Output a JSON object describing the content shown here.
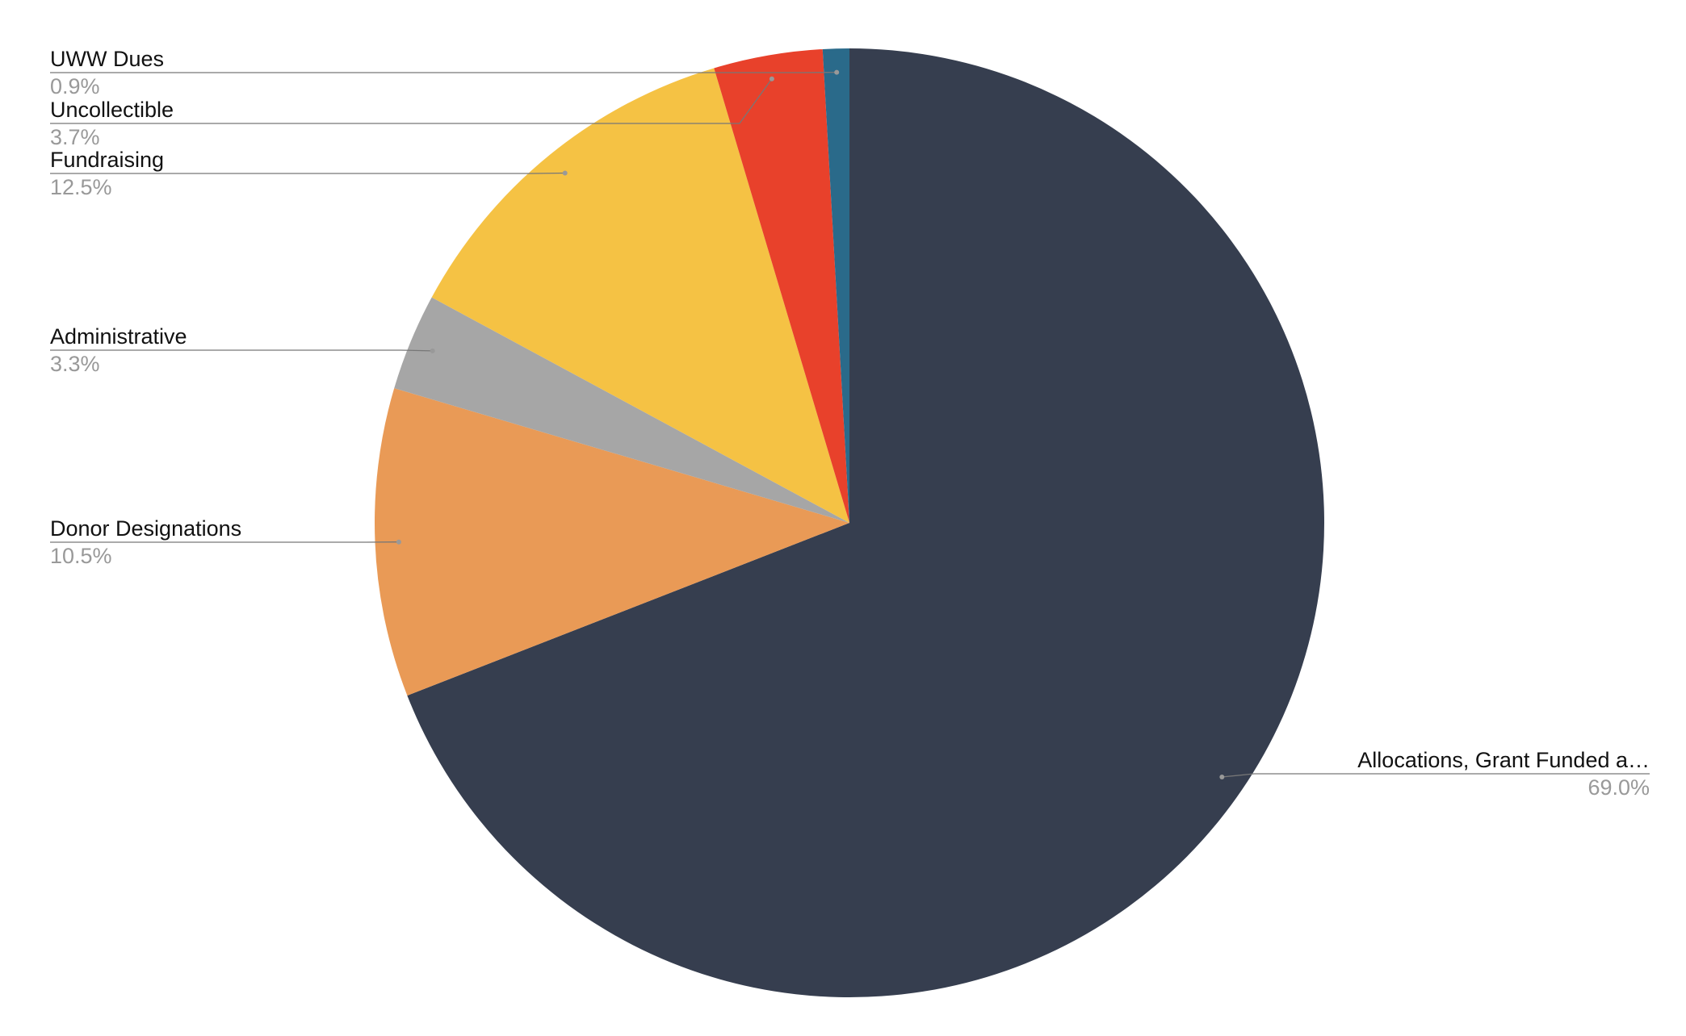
{
  "chart_data": {
    "type": "pie",
    "categories": [
      "Allocations, Grant Funded a…",
      "Donor Designations",
      "Administrative",
      "Fundraising",
      "Uncollectible",
      "UWW Dues"
    ],
    "values": [
      69.0,
      10.5,
      3.3,
      12.5,
      3.7,
      0.9
    ],
    "value_labels": [
      "69.0%",
      "10.5%",
      "3.3%",
      "12.5%",
      "3.7%",
      "0.9%"
    ],
    "colors": [
      "#363e4f",
      "#e99a56",
      "#a6a6a6",
      "#f5c244",
      "#e8412b",
      "#2a6a8a"
    ]
  }
}
